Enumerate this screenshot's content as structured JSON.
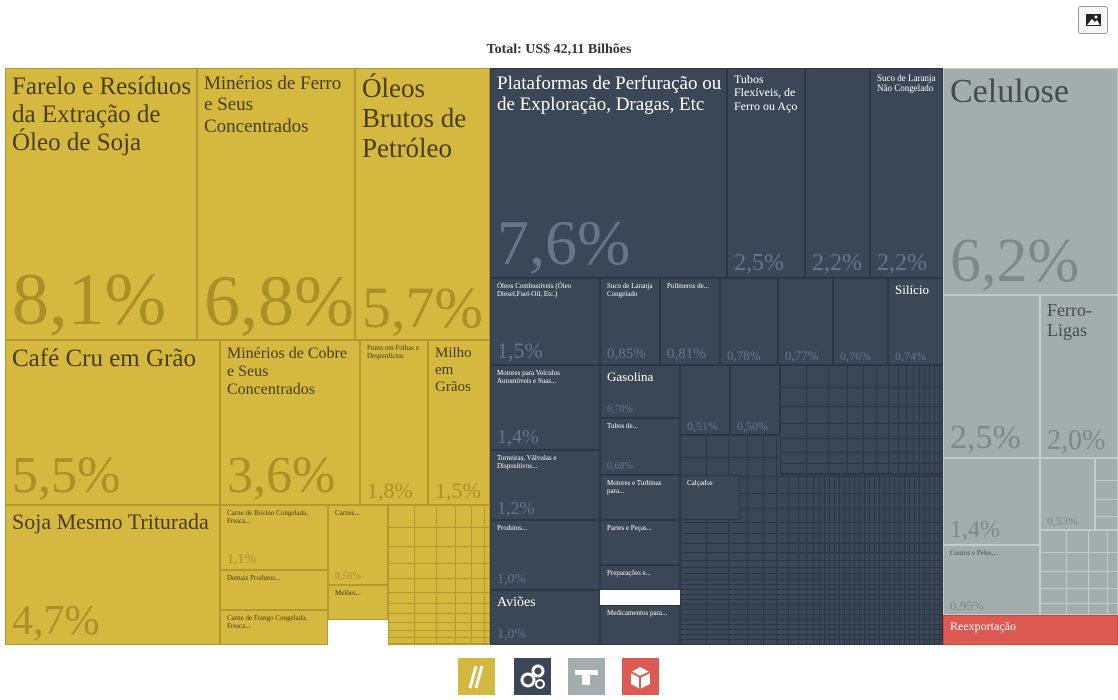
{
  "chart_data": {
    "type": "treemap",
    "title": "Total: US$ 42,11 Bilhões",
    "groups": [
      {
        "color": "#d4b83f",
        "items": [
          {
            "name": "Farelo e Resíduos da Extração de Óleo de Soja",
            "value": 8.1,
            "value_label": "8,1%"
          },
          {
            "name": "Minérios de Ferro e Seus Concentrados",
            "value": 6.8,
            "value_label": "6,8%"
          },
          {
            "name": "Óleos Brutos de Petróleo",
            "value": 5.7,
            "value_label": "5,7%"
          },
          {
            "name": "Café Cru em Grão",
            "value": 5.5,
            "value_label": "5,5%"
          },
          {
            "name": "Minérios de Cobre e Seus Concentrados",
            "value": 3.6,
            "value_label": "3,6%"
          },
          {
            "name": "Fumo em Folhas e Desperdícios",
            "value": 1.8,
            "value_label": "1,8%"
          },
          {
            "name": "Milho em Grãos",
            "value": 1.5,
            "value_label": "1,5%"
          },
          {
            "name": "Soja Mesmo Triturada",
            "value": 4.7,
            "value_label": "4,7%"
          },
          {
            "name": "Carne de Bovino Congelada, Fresca...",
            "value": 1.1,
            "value_label": "1,1%"
          },
          {
            "name": "Carnes...",
            "value": 0.56,
            "value_label": "0,56%"
          },
          {
            "name": "Demais Produtos...",
            "value": 0.4,
            "value_label": null
          },
          {
            "name": "Melões...",
            "value": 0.3,
            "value_label": null
          },
          {
            "name": "Carne de Frango Congelada, Fresca...",
            "value": 0.35,
            "value_label": null
          }
        ]
      },
      {
        "color": "#3b4656",
        "items": [
          {
            "name": "Plataformas de Perfuração ou de Exploração, Dragas, Etc",
            "value": 7.6,
            "value_label": "7,6%"
          },
          {
            "name": "Tubos Flexíveis, de Ferro ou Aço",
            "value": 2.5,
            "value_label": "2,5%"
          },
          {
            "name": null,
            "value": 2.2,
            "value_label": "2,2%"
          },
          {
            "name": "Suco de Laranja Não Congelado",
            "value": 2.2,
            "value_label": "2,2%"
          },
          {
            "name": "Óleos Combustíveis (Óleo Diesel,Fuel-Oil, Etc.)",
            "value": 1.5,
            "value_label": "1,5%"
          },
          {
            "name": "Suco de Laranja Congelado",
            "value": 0.85,
            "value_label": "0,85%"
          },
          {
            "name": "Polímeros de...",
            "value": 0.81,
            "value_label": "0,81%"
          },
          {
            "name": null,
            "value": 0.78,
            "value_label": "0,78%"
          },
          {
            "name": null,
            "value": 0.77,
            "value_label": "0,77%"
          },
          {
            "name": null,
            "value": 0.76,
            "value_label": "0,76%"
          },
          {
            "name": "Silício",
            "value": 0.74,
            "value_label": "0,74%"
          },
          {
            "name": "Motores para Veículos Automóveis e Suas...",
            "value": 1.4,
            "value_label": "1,4%"
          },
          {
            "name": "Gasolina",
            "value": 0.7,
            "value_label": "0,70%"
          },
          {
            "name": "Tubos de...",
            "value": 0.68,
            "value_label": "0,68%"
          },
          {
            "name": null,
            "value": 0.51,
            "value_label": "0,51%"
          },
          {
            "name": null,
            "value": 0.5,
            "value_label": "0,50%"
          },
          {
            "name": "Torneiras, Válvulas e Dispositivos...",
            "value": 1.2,
            "value_label": "1,2%"
          },
          {
            "name": "Motores e Turbinas para...",
            "value": 0.6,
            "value_label": null
          },
          {
            "name": "Calçados",
            "value": 0.45,
            "value_label": null
          },
          {
            "name": "Produtos...",
            "value": 1.0,
            "value_label": "1,0%"
          },
          {
            "name": "Partes e Peças...",
            "value": 0.55,
            "value_label": null
          },
          {
            "name": "Preparações e...",
            "value": 0.45,
            "value_label": null
          },
          {
            "name": "Aviões",
            "value": 1.0,
            "value_label": "1,0%"
          },
          {
            "name": "Medicamentos para...",
            "value": 0.45,
            "value_label": null
          }
        ]
      },
      {
        "color": "#a3adae",
        "items": [
          {
            "name": "Celulose",
            "value": 6.2,
            "value_label": "6,2%"
          },
          {
            "name": null,
            "value": 2.5,
            "value_label": "2,5%"
          },
          {
            "name": "Ferro-Ligas",
            "value": 2.0,
            "value_label": "2,0%"
          },
          {
            "name": null,
            "value": 1.4,
            "value_label": "1,4%"
          },
          {
            "name": null,
            "value": 0.53,
            "value_label": "0,53%"
          },
          {
            "name": "Couros e Peles,...",
            "value": 0.95,
            "value_label": "0,95%"
          }
        ]
      },
      {
        "color": "#dd5a52",
        "items": [
          {
            "name": "Reexportação",
            "value": 0.9,
            "value_label": null
          }
        ]
      }
    ]
  }
}
